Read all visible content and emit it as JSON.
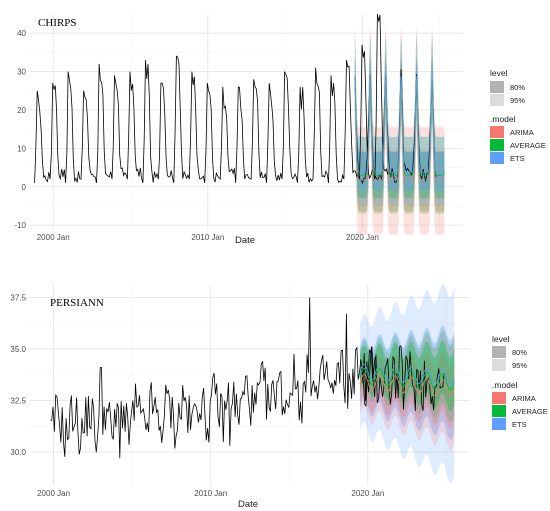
{
  "chart_data": [
    {
      "type": "line",
      "title": "CHIRPS",
      "xlabel": "Date",
      "ylabel": "",
      "x_ticks": [
        "2000 Jan",
        "2010 Jan",
        "2020 Jan"
      ],
      "y_ticks": [
        -10,
        0,
        10,
        20,
        30,
        40
      ],
      "xlim": [
        1998.5,
        2026.5
      ],
      "ylim": [
        -11,
        45
      ],
      "grid": true,
      "legend_position": "right",
      "history_range": [
        1998.5,
        2020.5
      ],
      "observed_peaks": [
        25,
        27,
        30,
        25,
        32,
        29,
        30,
        33,
        27,
        34,
        30,
        27,
        26,
        26,
        28,
        27,
        30,
        26,
        31,
        29,
        33,
        37,
        45
      ],
      "observed_troughs": [
        1,
        2,
        1,
        2,
        1,
        2,
        2,
        1,
        2,
        1,
        2,
        1,
        2,
        1,
        2,
        1,
        2,
        1,
        2,
        1,
        2,
        2
      ],
      "test_range": [
        2019.5,
        2024.8
      ],
      "forecast_range": [
        2019.5,
        2025.3
      ],
      "forecast_mean_amplitude": [
        3,
        28
      ],
      "series": [
        {
          "name": "ARIMA",
          "color": "#F8766D"
        },
        {
          "name": "AVERAGE",
          "color": "#00BA38"
        },
        {
          "name": "ETS",
          "color": "#619CFF"
        }
      ]
    },
    {
      "type": "line",
      "title": "PERSIANN",
      "xlabel": "Date",
      "ylabel": "",
      "x_ticks": [
        "2000 Jan",
        "2010 Jan",
        "2020 Jan"
      ],
      "y_ticks": [
        30.0,
        32.5,
        35.0,
        37.5
      ],
      "y_tick_labels": [
        "30.0",
        "32.5",
        "35.0",
        "37.5"
      ],
      "xlim": [
        1998.5,
        2026.5
      ],
      "ylim": [
        28.4,
        38.1
      ],
      "grid": true,
      "legend_position": "right",
      "trend": [
        [
          1999.8,
          31.3
        ],
        [
          2005,
          31.6
        ],
        [
          2010,
          32.1
        ],
        [
          2015,
          33.0
        ],
        [
          2020,
          33.7
        ],
        [
          2025,
          33.4
        ]
      ],
      "history_range": [
        1999.8,
        2020.5
      ],
      "forecast_range": [
        2019.5,
        2025.5
      ],
      "series": [
        {
          "name": "ARIMA",
          "color": "#F8766D"
        },
        {
          "name": "AVERAGE",
          "color": "#00BA38"
        },
        {
          "name": "ETS",
          "color": "#619CFF"
        }
      ]
    }
  ],
  "legend": {
    "level_title": "level",
    "level_items": [
      "80%",
      "95%"
    ],
    "model_title": ".model",
    "model_items": [
      {
        "label": "ARIMA",
        "color": "#F8766D"
      },
      {
        "label": "AVERAGE",
        "color": "#00BA38"
      },
      {
        "label": "ETS",
        "color": "#619CFF"
      }
    ]
  }
}
